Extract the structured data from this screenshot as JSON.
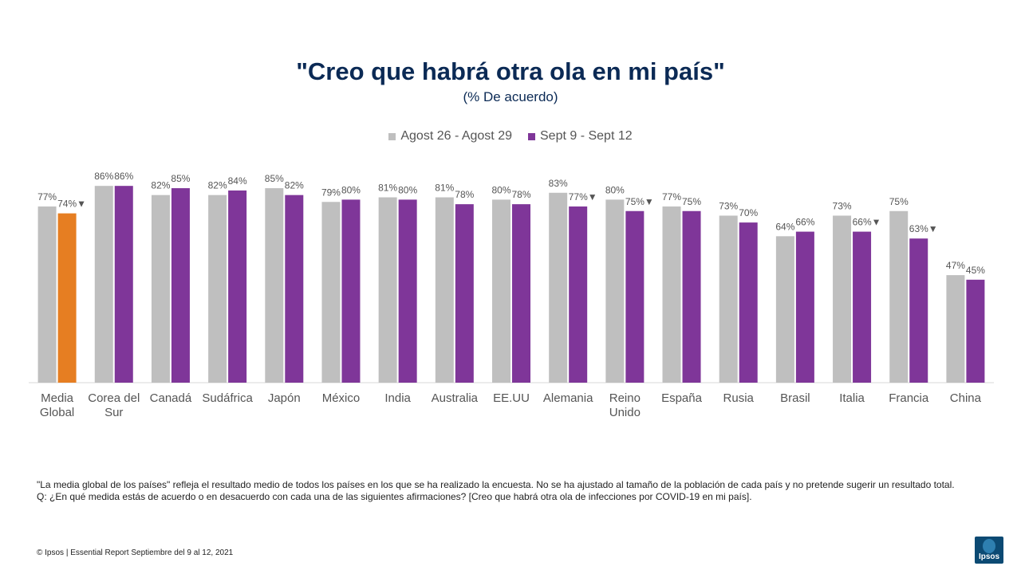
{
  "chart_data": {
    "type": "bar",
    "title": "\"Creo que habrá otra ola en mi país\"",
    "subtitle": "(% De acuerdo)",
    "categories": [
      [
        "Media",
        "Global"
      ],
      [
        "Corea del",
        "Sur"
      ],
      [
        "Canadá"
      ],
      [
        "Sudáfrica"
      ],
      [
        "Japón"
      ],
      [
        "México"
      ],
      [
        "India"
      ],
      [
        "Australia"
      ],
      [
        "EE.UU"
      ],
      [
        "Alemania"
      ],
      [
        "Reino",
        "Unido"
      ],
      [
        "España"
      ],
      [
        "Rusia"
      ],
      [
        "Brasil"
      ],
      [
        "Italia"
      ],
      [
        "Francia"
      ],
      [
        "China"
      ]
    ],
    "series": [
      {
        "name": "Agost 26 - Agost 29",
        "color": "#bfbfbf",
        "values": [
          77,
          86,
          82,
          82,
          85,
          79,
          81,
          81,
          80,
          83,
          80,
          77,
          73,
          64,
          73,
          75,
          47
        ]
      },
      {
        "name": "Sept 9 - Sept 12",
        "color": "#7f3699",
        "highlight_color": "#e67e22",
        "highlight_index": 0,
        "values": [
          74,
          86,
          85,
          84,
          82,
          80,
          80,
          78,
          78,
          77,
          75,
          75,
          70,
          66,
          66,
          63,
          45
        ],
        "decrease_flag": [
          true,
          false,
          false,
          false,
          false,
          false,
          false,
          false,
          false,
          true,
          true,
          false,
          false,
          false,
          true,
          true,
          false
        ]
      }
    ],
    "value_suffix": "%",
    "decrease_marker": "▼",
    "ylim": [
      0,
      100
    ],
    "legend_position": "top-center"
  },
  "footnote": {
    "line1": "\"La media global de los países\" refleja el resultado medio de todos los países en los que se ha realizado la encuesta. No se ha ajustado al tamaño de la población de cada país y no pretende sugerir un resultado total.",
    "line2": "Q: ¿En qué medida estás de acuerdo o en desacuerdo con cada una de las siguientes afirmaciones? [Creo que habrá otra ola de infecciones por COVID-19 en mi país]."
  },
  "footer": {
    "text": "© Ipsos | Essential Report Septiembre del 9 al 12, 2021"
  },
  "logo": {
    "text": "Ipsos"
  }
}
